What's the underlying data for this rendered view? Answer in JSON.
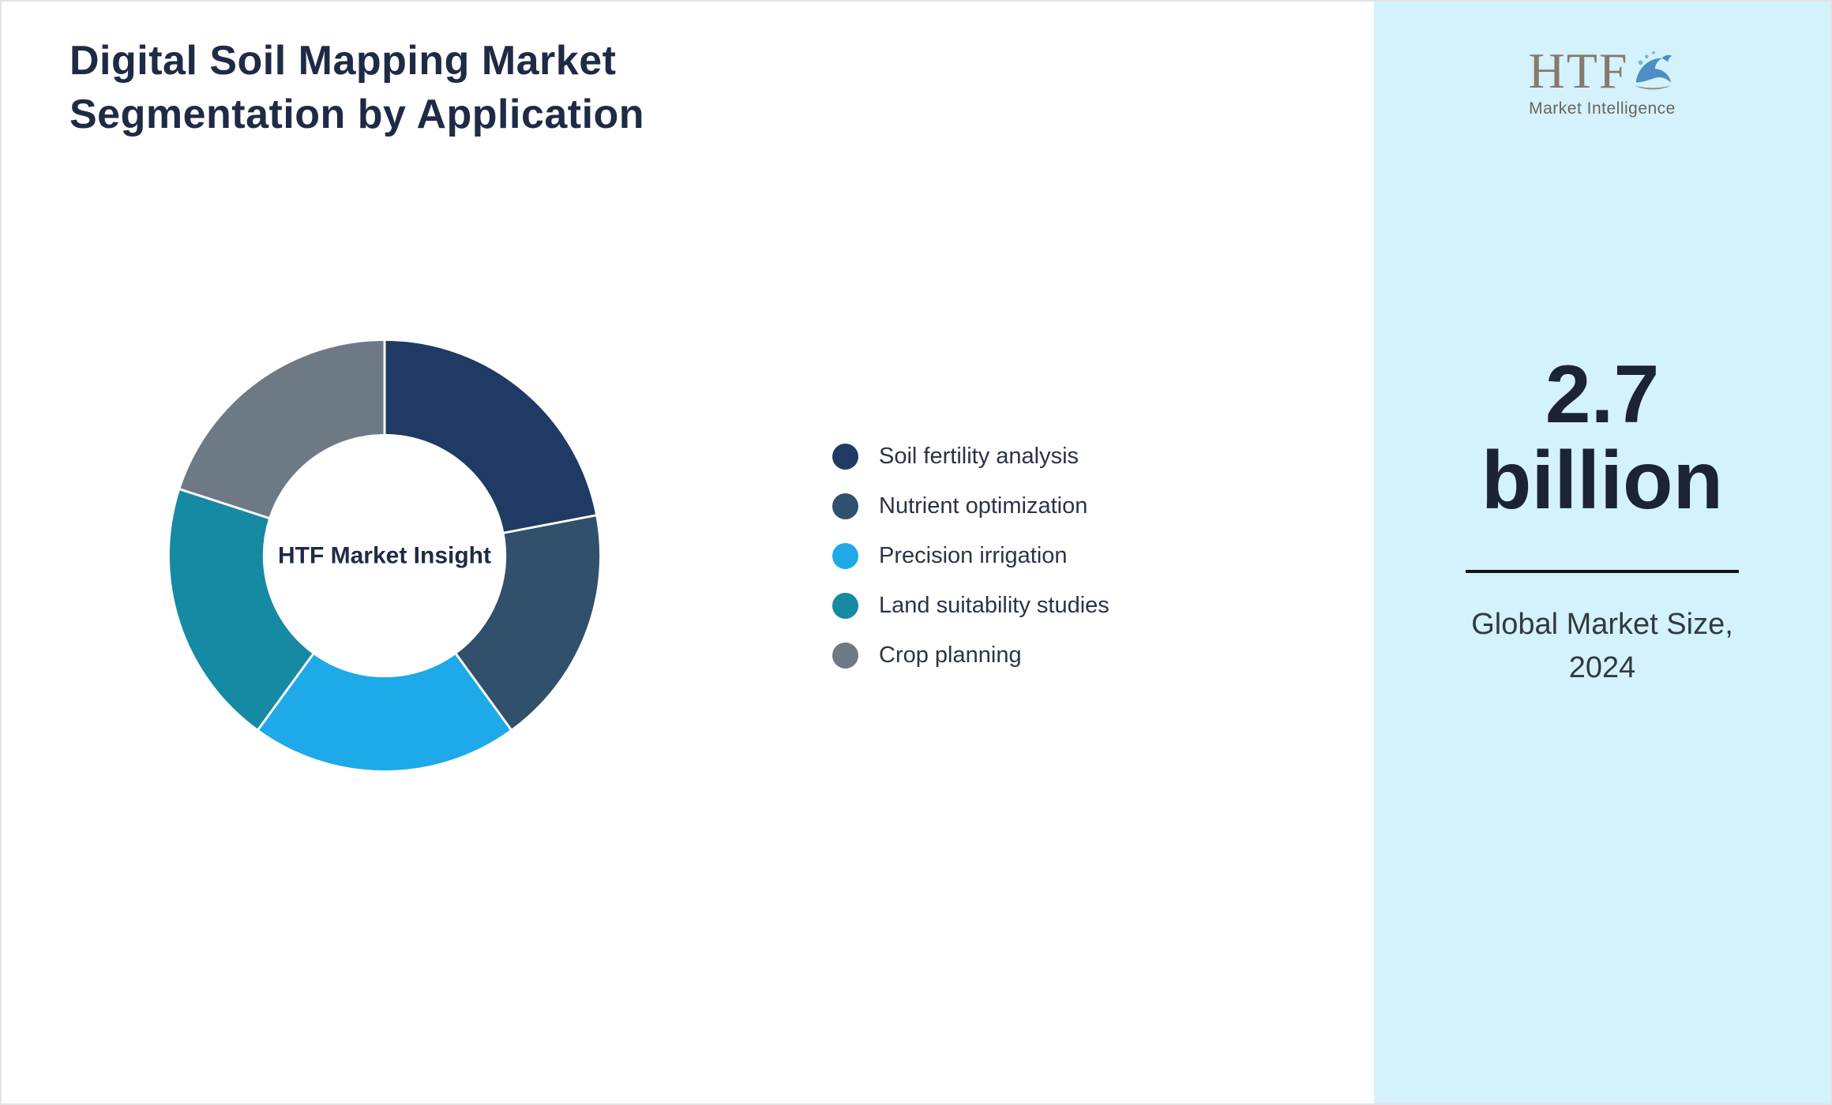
{
  "title": "Digital Soil Mapping Market Segmentation by Application",
  "chart_data": {
    "type": "pie",
    "subtype": "donut",
    "title": "Digital Soil Mapping Market Segmentation by Application",
    "center_label": "HTF Market Insight",
    "categories": [
      "Soil fertility analysis",
      "Nutrient optimization",
      "Precision irrigation",
      "Land suitability studies",
      "Crop planning"
    ],
    "values": [
      22,
      18,
      20,
      20,
      20
    ],
    "colors": [
      "#1f3a64",
      "#31506b",
      "#1ea9e9",
      "#1689a3",
      "#6e7986"
    ],
    "legend_position": "right",
    "start_angle": "top",
    "direction": "clockwise",
    "inner_radius_ratio": 0.56,
    "segment_gap_color": "#ffffff"
  },
  "side_panel": {
    "background_color": "#d3f2fb",
    "logo": {
      "text": "HTF",
      "subtext": "Market Intelligence",
      "icon": "dolphin-icon"
    },
    "market_size_value": "2.7 billion",
    "market_size_caption": "Global Market Size, 2024"
  }
}
